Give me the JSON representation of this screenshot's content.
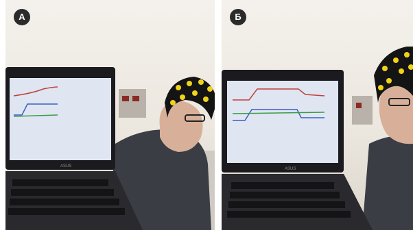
{
  "panels": [
    {
      "label": "A",
      "laptop_brand": "ASUS"
    },
    {
      "label": "Б",
      "laptop_brand": "ASUS"
    }
  ],
  "colors": {
    "trace_red": "#c0413a",
    "trace_blue": "#3b5fc2",
    "trace_green": "#3c9a45",
    "screen_bg": "#dfe6f2",
    "cap": "#141414",
    "electrode": "#f1d21a",
    "sweater": "#3a3d44"
  }
}
